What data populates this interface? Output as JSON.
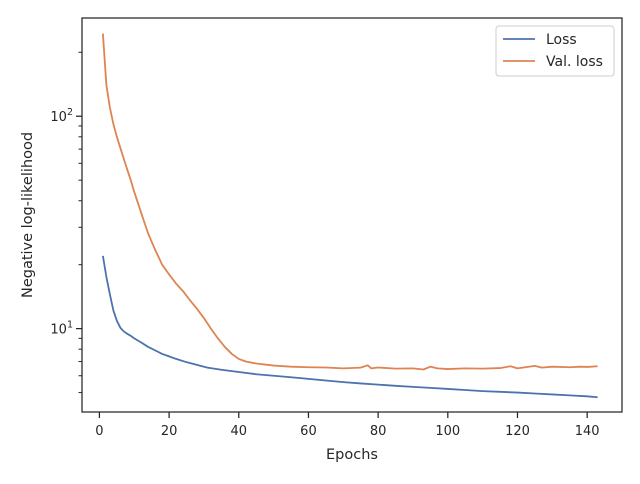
{
  "chart_data": {
    "type": "line",
    "xlabel": "Epochs",
    "ylabel": "Negative log-likelihood",
    "yscale": "log",
    "xlim": [
      -5,
      150
    ],
    "ylim": [
      4.05,
      290
    ],
    "grid": false,
    "legend": "top-right",
    "x_ticks": [
      0,
      20,
      40,
      60,
      80,
      100,
      120,
      140
    ],
    "y_major_ticks": [
      {
        "value": 10,
        "base": "10",
        "exp": "1"
      },
      {
        "value": 100,
        "base": "10",
        "exp": "2"
      }
    ],
    "y_minor_ticks": [
      5,
      6,
      7,
      8,
      9,
      20,
      30,
      40,
      50,
      60,
      70,
      80,
      90,
      200
    ],
    "series": [
      {
        "name": "Loss",
        "color": "#4c72b0",
        "points": [
          [
            1,
            22
          ],
          [
            2,
            17.5
          ],
          [
            3,
            14.5
          ],
          [
            4,
            12.2
          ],
          [
            5,
            10.9
          ],
          [
            6,
            10.1
          ],
          [
            7,
            9.7
          ],
          [
            8,
            9.45
          ],
          [
            9,
            9.25
          ],
          [
            10,
            9.0
          ],
          [
            12,
            8.6
          ],
          [
            14,
            8.2
          ],
          [
            16,
            7.9
          ],
          [
            18,
            7.6
          ],
          [
            20,
            7.4
          ],
          [
            22,
            7.2
          ],
          [
            25,
            6.95
          ],
          [
            28,
            6.75
          ],
          [
            31,
            6.55
          ],
          [
            35,
            6.4
          ],
          [
            40,
            6.25
          ],
          [
            45,
            6.1
          ],
          [
            50,
            6.0
          ],
          [
            55,
            5.9
          ],
          [
            60,
            5.8
          ],
          [
            65,
            5.7
          ],
          [
            70,
            5.6
          ],
          [
            75,
            5.52
          ],
          [
            80,
            5.45
          ],
          [
            85,
            5.38
          ],
          [
            90,
            5.32
          ],
          [
            95,
            5.26
          ],
          [
            100,
            5.2
          ],
          [
            105,
            5.14
          ],
          [
            110,
            5.08
          ],
          [
            115,
            5.04
          ],
          [
            120,
            5.0
          ],
          [
            125,
            4.95
          ],
          [
            130,
            4.9
          ],
          [
            135,
            4.85
          ],
          [
            140,
            4.8
          ],
          [
            143,
            4.75
          ]
        ]
      },
      {
        "name": "Val. loss",
        "color": "#dd8452",
        "points": [
          [
            1,
            245
          ],
          [
            2,
            140
          ],
          [
            3,
            110
          ],
          [
            4,
            92
          ],
          [
            5,
            80
          ],
          [
            6,
            71
          ],
          [
            7,
            63
          ],
          [
            8,
            56
          ],
          [
            9,
            50
          ],
          [
            10,
            44
          ],
          [
            12,
            35
          ],
          [
            14,
            28
          ],
          [
            16,
            23.5
          ],
          [
            18,
            20
          ],
          [
            20,
            18
          ],
          [
            22,
            16.3
          ],
          [
            24,
            15
          ],
          [
            26,
            13.6
          ],
          [
            28,
            12.4
          ],
          [
            30,
            11.2
          ],
          [
            32,
            10
          ],
          [
            34,
            9.0
          ],
          [
            36,
            8.2
          ],
          [
            38,
            7.6
          ],
          [
            40,
            7.2
          ],
          [
            42,
            7.0
          ],
          [
            45,
            6.85
          ],
          [
            50,
            6.7
          ],
          [
            55,
            6.62
          ],
          [
            60,
            6.58
          ],
          [
            65,
            6.56
          ],
          [
            70,
            6.5
          ],
          [
            75,
            6.55
          ],
          [
            77,
            6.72
          ],
          [
            78,
            6.5
          ],
          [
            80,
            6.56
          ],
          [
            85,
            6.48
          ],
          [
            90,
            6.5
          ],
          [
            93,
            6.42
          ],
          [
            95,
            6.62
          ],
          [
            97,
            6.5
          ],
          [
            100,
            6.45
          ],
          [
            105,
            6.5
          ],
          [
            110,
            6.48
          ],
          [
            115,
            6.52
          ],
          [
            118,
            6.65
          ],
          [
            120,
            6.5
          ],
          [
            125,
            6.68
          ],
          [
            127,
            6.55
          ],
          [
            130,
            6.62
          ],
          [
            135,
            6.58
          ],
          [
            138,
            6.62
          ],
          [
            140,
            6.6
          ],
          [
            143,
            6.65
          ]
        ]
      }
    ]
  }
}
